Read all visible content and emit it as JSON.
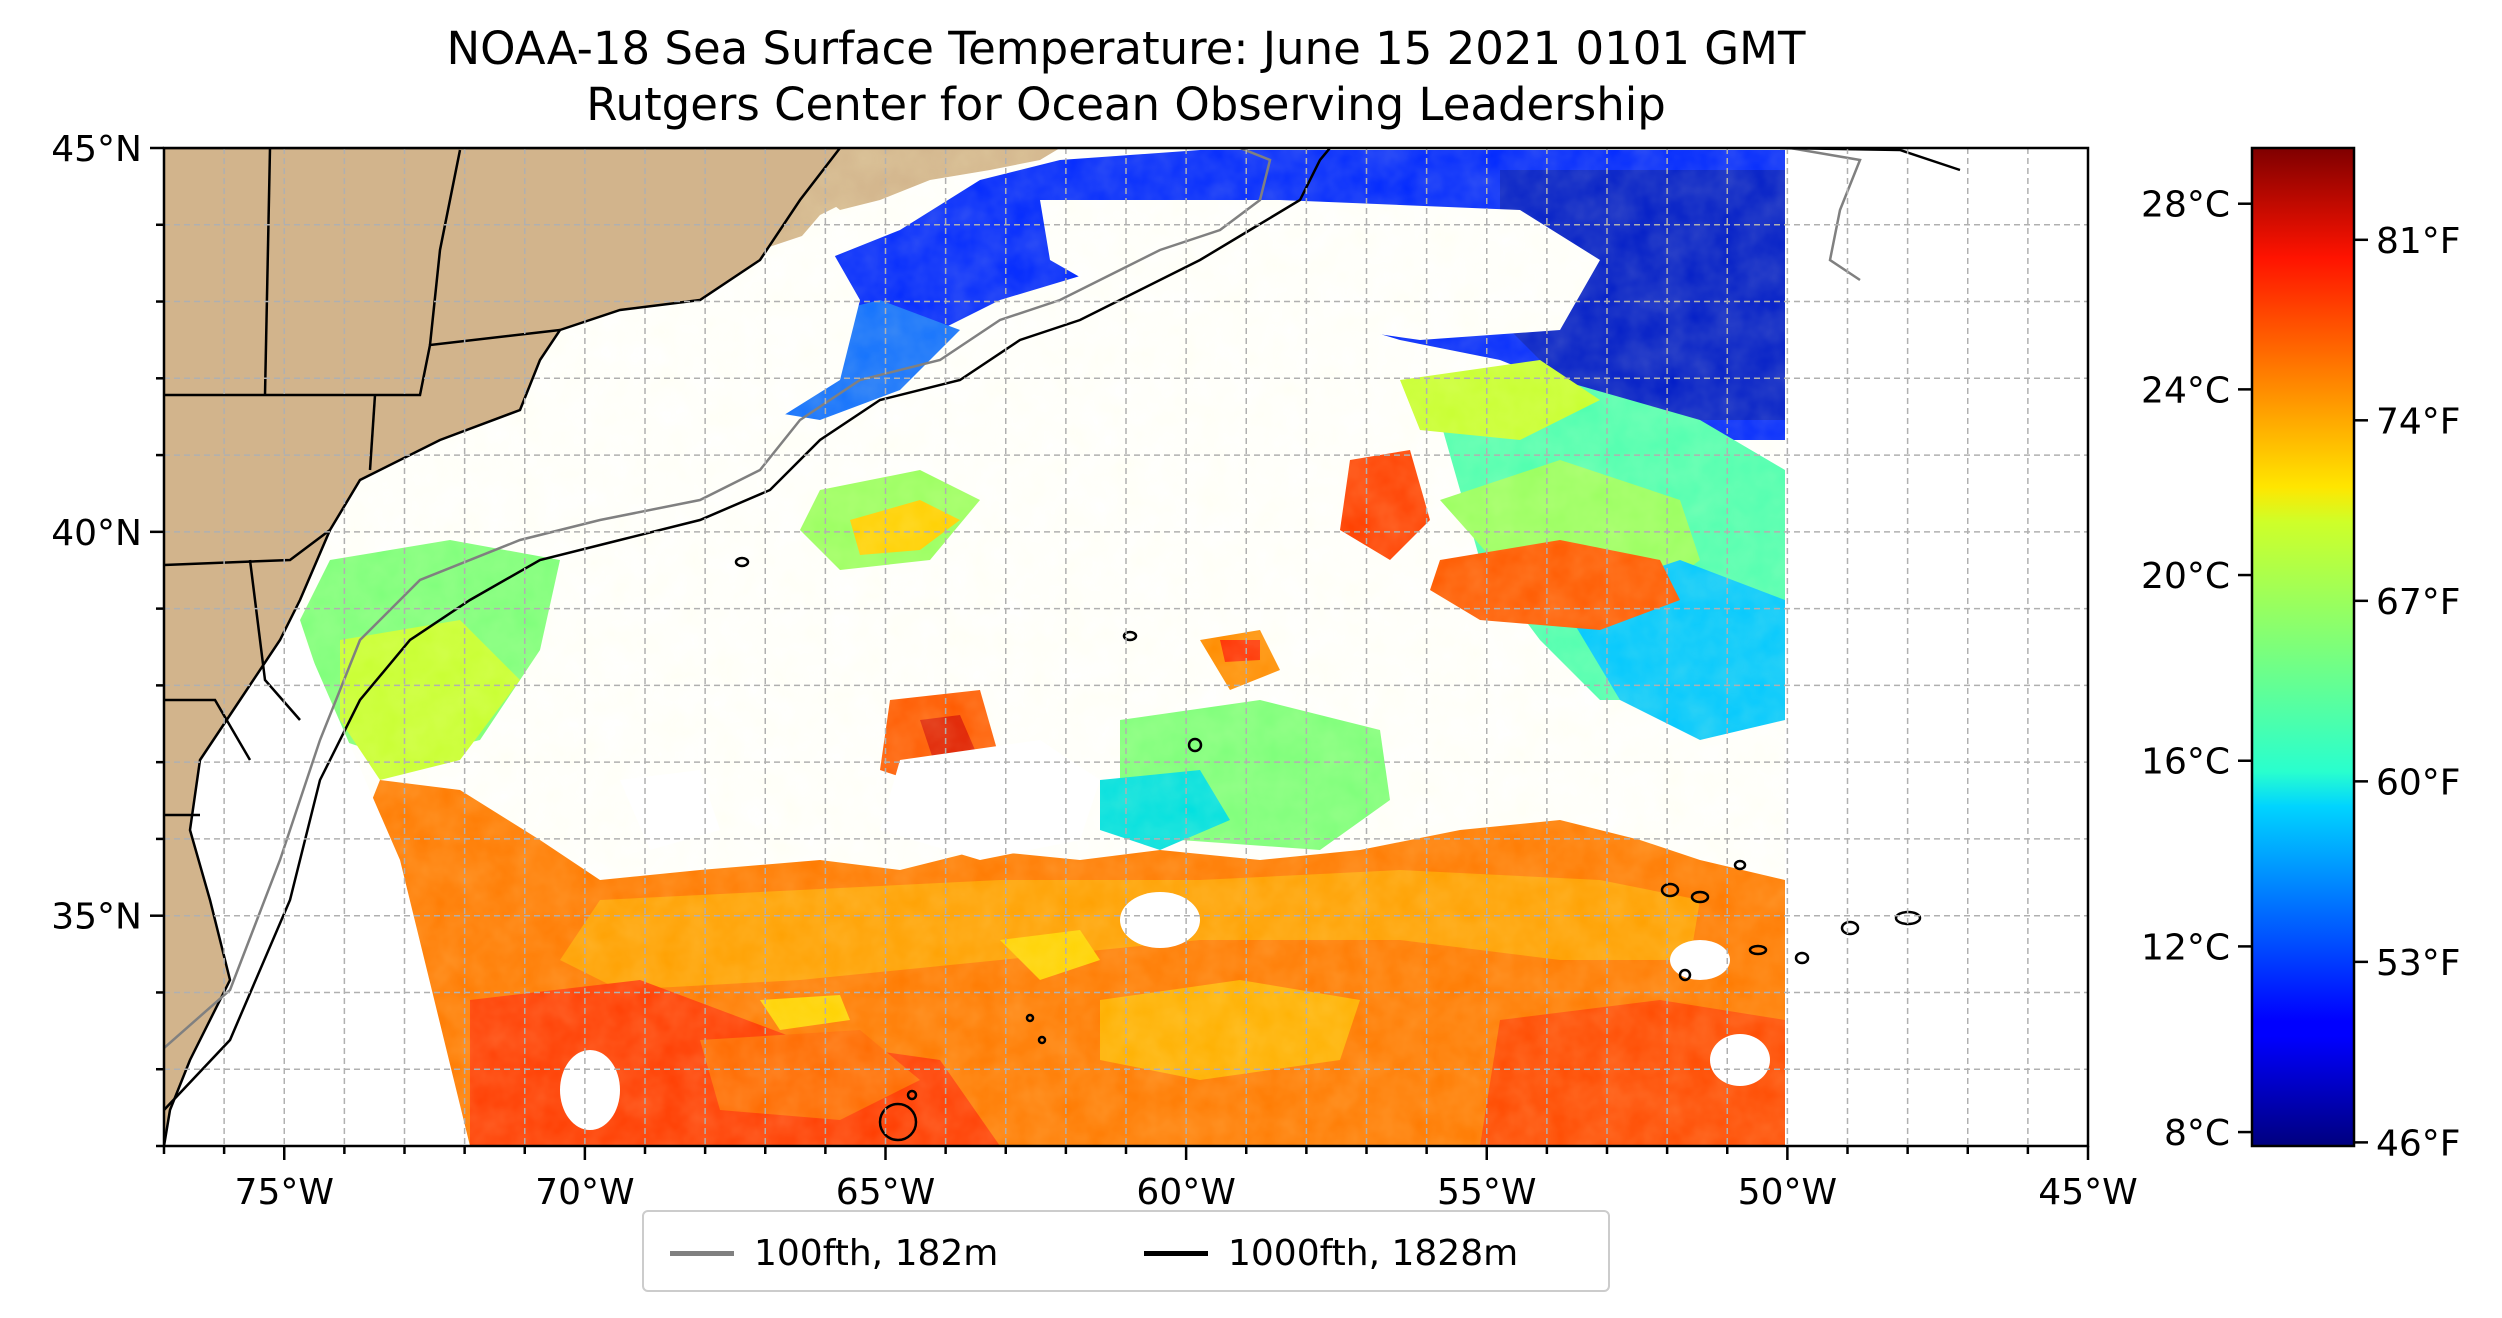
{
  "title": {
    "line1": "NOAA-18 Sea Surface Temperature: June 15 2021 0101 GMT",
    "line2": "Rutgers Center for Ocean Observing Leadership"
  },
  "map": {
    "extent": {
      "lon": [
        -77,
        -45
      ],
      "lat": [
        32,
        45
      ]
    },
    "x_ticks": [
      {
        "lon": -75,
        "label": "75°W"
      },
      {
        "lon": -70,
        "label": "70°W"
      },
      {
        "lon": -65,
        "label": "65°W"
      },
      {
        "lon": -60,
        "label": "60°W"
      },
      {
        "lon": -55,
        "label": "55°W"
      },
      {
        "lon": -50,
        "label": "50°W"
      },
      {
        "lon": -45,
        "label": "45°W"
      }
    ],
    "y_ticks": [
      {
        "lat": 45,
        "label": "45°N"
      },
      {
        "lat": 40,
        "label": "40°N"
      },
      {
        "lat": 35,
        "label": "35°N"
      }
    ],
    "grid": true,
    "grid_step_degrees": 1,
    "land_color": "#d2b48c",
    "lake_color": "#97b6e1"
  },
  "colorbar": {
    "colormap": "jet",
    "range_c": [
      7.7,
      29.2
    ],
    "celsius_ticks": [
      {
        "value": 8,
        "label": "8°C"
      },
      {
        "value": 12,
        "label": "12°C"
      },
      {
        "value": 16,
        "label": "16°C"
      },
      {
        "value": 20,
        "label": "20°C"
      },
      {
        "value": 24,
        "label": "24°C"
      },
      {
        "value": 28,
        "label": "28°C"
      }
    ],
    "fahrenheit_ticks": [
      {
        "value": 46,
        "label": "46°F"
      },
      {
        "value": 53,
        "label": "53°F"
      },
      {
        "value": 60,
        "label": "60°F"
      },
      {
        "value": 67,
        "label": "67°F"
      },
      {
        "value": 74,
        "label": "74°F"
      },
      {
        "value": 81,
        "label": "81°F"
      }
    ]
  },
  "legend": {
    "items": [
      {
        "label": "100fth, 182m",
        "color": "#808080"
      },
      {
        "label": "1000fth, 1828m",
        "color": "#000000"
      }
    ]
  }
}
